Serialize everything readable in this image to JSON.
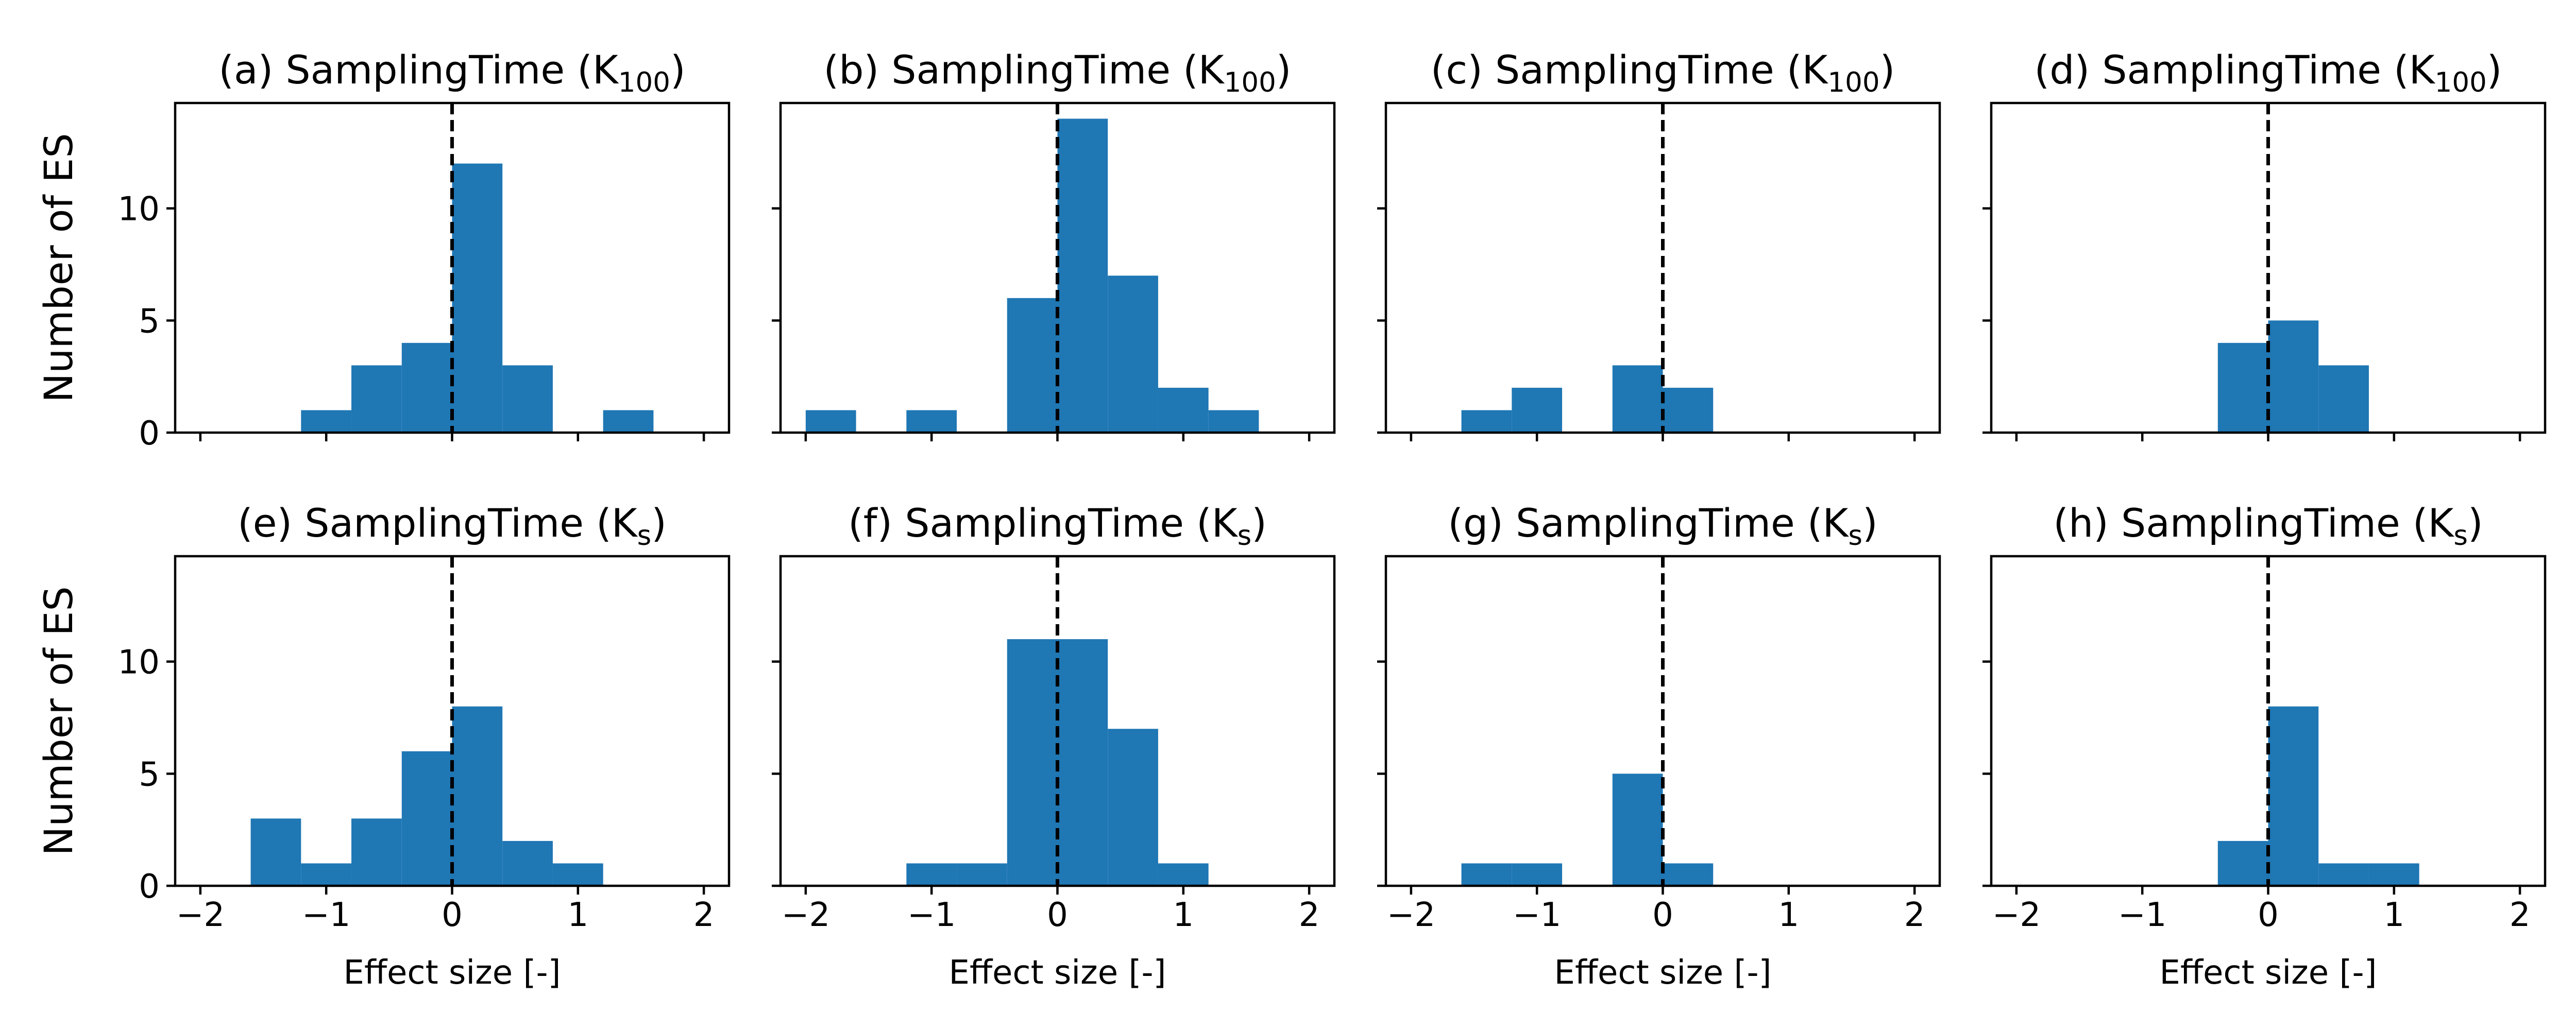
{
  "figure": {
    "ylabel": "Number of ES",
    "xlabel": "Effect size [-]"
  },
  "chart_data": [
    {
      "type": "bar",
      "title": "(a) SamplingTime (K100)",
      "title_main": "(a) SamplingTime (K",
      "title_sub": "100",
      "xlabel": "",
      "ylabel": "Number of ES",
      "bin_edges": [
        -1.2,
        -0.8,
        -0.4,
        0.0,
        0.4,
        0.8,
        1.2,
        1.6
      ],
      "values": [
        1,
        3,
        4,
        12,
        3,
        0,
        1
      ],
      "xlim": [
        -2.2,
        2.2
      ],
      "ylim": [
        0,
        14.7
      ],
      "xticks": [
        -2,
        -1,
        0,
        1,
        2
      ],
      "yticks": [
        0,
        5,
        10
      ],
      "vline": 0,
      "color": "#1f77b4"
    },
    {
      "type": "bar",
      "title": "(b) SamplingTime (K100)",
      "title_main": "(b) SamplingTime (K",
      "title_sub": "100",
      "xlabel": "",
      "ylabel": "",
      "bin_edges": [
        -2.0,
        -1.6,
        -1.2,
        -0.8,
        -0.4,
        0.0,
        0.4,
        0.8,
        1.2,
        1.6
      ],
      "values": [
        1,
        0,
        1,
        0,
        6,
        14,
        7,
        2,
        1
      ],
      "xlim": [
        -2.2,
        2.2
      ],
      "ylim": [
        0,
        14.7
      ],
      "xticks": [
        -2,
        -1,
        0,
        1,
        2
      ],
      "yticks": [
        0,
        5,
        10
      ],
      "vline": 0,
      "color": "#1f77b4"
    },
    {
      "type": "bar",
      "title": "(c) SamplingTime (K100)",
      "title_main": "(c) SamplingTime (K",
      "title_sub": "100",
      "xlabel": "",
      "ylabel": "",
      "bin_edges": [
        -1.6,
        -1.2,
        -0.8,
        -0.4,
        0.0,
        0.4
      ],
      "values": [
        1,
        2,
        0,
        3,
        2
      ],
      "xlim": [
        -2.2,
        2.2
      ],
      "ylim": [
        0,
        14.7
      ],
      "xticks": [
        -2,
        -1,
        0,
        1,
        2
      ],
      "yticks": [
        0,
        5,
        10
      ],
      "vline": 0,
      "color": "#1f77b4"
    },
    {
      "type": "bar",
      "title": "(d) SamplingTime (K100)",
      "title_main": "(d) SamplingTime (K",
      "title_sub": "100",
      "xlabel": "",
      "ylabel": "",
      "bin_edges": [
        -0.4,
        0.0,
        0.4,
        0.8
      ],
      "values": [
        4,
        5,
        3
      ],
      "xlim": [
        -2.2,
        2.2
      ],
      "ylim": [
        0,
        14.7
      ],
      "xticks": [
        -2,
        -1,
        0,
        1,
        2
      ],
      "yticks": [
        0,
        5,
        10
      ],
      "vline": 0,
      "color": "#1f77b4"
    },
    {
      "type": "bar",
      "title": "(e) SamplingTime (Ks)",
      "title_main": "(e) SamplingTime (K",
      "title_sub": "s",
      "xlabel": "Effect size [-]",
      "ylabel": "Number of ES",
      "bin_edges": [
        -1.6,
        -1.2,
        -0.8,
        -0.4,
        0.0,
        0.4,
        0.8,
        1.2
      ],
      "values": [
        3,
        1,
        3,
        6,
        8,
        2,
        1
      ],
      "xlim": [
        -2.2,
        2.2
      ],
      "ylim": [
        0,
        14.7
      ],
      "xticks": [
        -2,
        -1,
        0,
        1,
        2
      ],
      "yticks": [
        0,
        5,
        10
      ],
      "vline": 0,
      "color": "#1f77b4"
    },
    {
      "type": "bar",
      "title": "(f) SamplingTime (Ks)",
      "title_main": "(f) SamplingTime (K",
      "title_sub": "s",
      "xlabel": "Effect size [-]",
      "ylabel": "",
      "bin_edges": [
        -1.2,
        -0.8,
        -0.4,
        0.0,
        0.4,
        0.8,
        1.2
      ],
      "values": [
        1,
        1,
        11,
        11,
        7,
        1
      ],
      "xlim": [
        -2.2,
        2.2
      ],
      "ylim": [
        0,
        14.7
      ],
      "xticks": [
        -2,
        -1,
        0,
        1,
        2
      ],
      "yticks": [
        0,
        5,
        10
      ],
      "vline": 0,
      "color": "#1f77b4"
    },
    {
      "type": "bar",
      "title": "(g) SamplingTime (Ks)",
      "title_main": "(g) SamplingTime (K",
      "title_sub": "s",
      "xlabel": "Effect size [-]",
      "ylabel": "",
      "bin_edges": [
        -1.6,
        -1.2,
        -0.8,
        -0.4,
        0.0,
        0.4
      ],
      "values": [
        1,
        1,
        0,
        5,
        1
      ],
      "xlim": [
        -2.2,
        2.2
      ],
      "ylim": [
        0,
        14.7
      ],
      "xticks": [
        -2,
        -1,
        0,
        1,
        2
      ],
      "yticks": [
        0,
        5,
        10
      ],
      "vline": 0,
      "color": "#1f77b4"
    },
    {
      "type": "bar",
      "title": "(h) SamplingTime (Ks)",
      "title_main": "(h) SamplingTime (K",
      "title_sub": "s",
      "xlabel": "Effect size [-]",
      "ylabel": "",
      "bin_edges": [
        -0.4,
        0.0,
        0.4,
        0.8,
        1.2
      ],
      "values": [
        2,
        8,
        1,
        1
      ],
      "xlim": [
        -2.2,
        2.2
      ],
      "ylim": [
        0,
        14.7
      ],
      "xticks": [
        -2,
        -1,
        0,
        1,
        2
      ],
      "yticks": [
        0,
        5,
        10
      ],
      "vline": 0,
      "color": "#1f77b4"
    }
  ]
}
